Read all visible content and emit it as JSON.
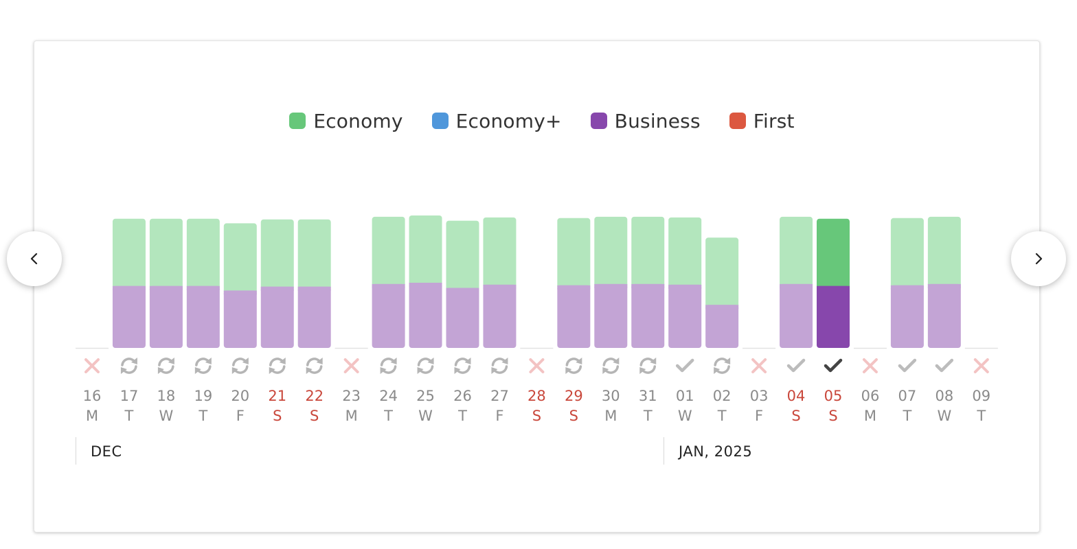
{
  "legend": [
    {
      "label": "Economy",
      "color": "#67c77a"
    },
    {
      "label": "Economy+",
      "color": "#4f97db"
    },
    {
      "label": "Business",
      "color": "#8747ac"
    },
    {
      "label": "First",
      "color": "#dc5840"
    }
  ],
  "nav": {
    "prev_icon": "chevron-left-icon",
    "next_icon": "chevron-right-icon"
  },
  "months": [
    {
      "label": "DEC"
    },
    {
      "label": "JAN, 2025"
    }
  ],
  "chart_data": {
    "type": "bar",
    "stacked": true,
    "selected_day": "05",
    "days": [
      {
        "day": "16",
        "dow": "M",
        "weekend": false,
        "status": "unavailable",
        "business": null,
        "economy": null
      },
      {
        "day": "17",
        "dow": "T",
        "weekend": false,
        "status": "refresh",
        "business": 95,
        "economy": 100
      },
      {
        "day": "18",
        "dow": "W",
        "weekend": false,
        "status": "refresh",
        "business": 95,
        "economy": 100
      },
      {
        "day": "19",
        "dow": "T",
        "weekend": false,
        "status": "refresh",
        "business": 95,
        "economy": 100
      },
      {
        "day": "20",
        "dow": "F",
        "weekend": false,
        "status": "refresh",
        "business": 88,
        "economy": 100
      },
      {
        "day": "21",
        "dow": "S",
        "weekend": true,
        "status": "refresh",
        "business": 94,
        "economy": 100
      },
      {
        "day": "22",
        "dow": "S",
        "weekend": true,
        "status": "refresh",
        "business": 94,
        "economy": 100
      },
      {
        "day": "23",
        "dow": "M",
        "weekend": false,
        "status": "unavailable",
        "business": null,
        "economy": null
      },
      {
        "day": "24",
        "dow": "T",
        "weekend": false,
        "status": "refresh",
        "business": 98,
        "economy": 100
      },
      {
        "day": "25",
        "dow": "W",
        "weekend": false,
        "status": "refresh",
        "business": 100,
        "economy": 100
      },
      {
        "day": "26",
        "dow": "T",
        "weekend": false,
        "status": "refresh",
        "business": 92,
        "economy": 100
      },
      {
        "day": "27",
        "dow": "F",
        "weekend": false,
        "status": "refresh",
        "business": 97,
        "economy": 100
      },
      {
        "day": "28",
        "dow": "S",
        "weekend": true,
        "status": "unavailable",
        "business": null,
        "economy": null
      },
      {
        "day": "29",
        "dow": "S",
        "weekend": true,
        "status": "refresh",
        "business": 96,
        "economy": 100
      },
      {
        "day": "30",
        "dow": "M",
        "weekend": false,
        "status": "refresh",
        "business": 98,
        "economy": 100
      },
      {
        "day": "31",
        "dow": "T",
        "weekend": false,
        "status": "refresh",
        "business": 98,
        "economy": 100
      },
      {
        "day": "01",
        "dow": "W",
        "weekend": false,
        "status": "available",
        "business": 97,
        "economy": 100
      },
      {
        "day": "02",
        "dow": "T",
        "weekend": false,
        "status": "refresh",
        "business": 66,
        "economy": 100
      },
      {
        "day": "03",
        "dow": "F",
        "weekend": false,
        "status": "unavailable",
        "business": null,
        "economy": null
      },
      {
        "day": "04",
        "dow": "S",
        "weekend": true,
        "status": "available",
        "business": 98,
        "economy": 100
      },
      {
        "day": "05",
        "dow": "S",
        "weekend": true,
        "status": "selected",
        "business": 95,
        "economy": 100
      },
      {
        "day": "06",
        "dow": "M",
        "weekend": false,
        "status": "unavailable",
        "business": null,
        "economy": null
      },
      {
        "day": "07",
        "dow": "T",
        "weekend": false,
        "status": "available",
        "business": 96,
        "economy": 100
      },
      {
        "day": "08",
        "dow": "W",
        "weekend": false,
        "status": "available",
        "business": 98,
        "economy": 100
      },
      {
        "day": "09",
        "dow": "T",
        "weekend": false,
        "status": "unavailable",
        "business": null,
        "economy": null
      }
    ],
    "colors": {
      "economy": "#b3e6bd",
      "business": "#c3a4d5",
      "economy_selected": "#67c77a",
      "business_selected": "#8747ac",
      "weekend_text": "#c9473b",
      "x_mark": "#f3c3c3",
      "refresh_icon": "#b5b5b5",
      "check_icon": "#bcbcbc",
      "check_selected": "#444444"
    }
  }
}
